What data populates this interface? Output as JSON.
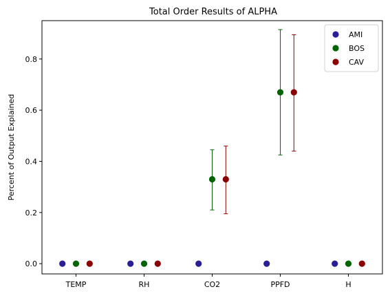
{
  "chart_data": {
    "type": "scatter",
    "title": "Total Order Results of ALPHA",
    "xlabel": "",
    "ylabel": "Percent of Output Explained",
    "categories": [
      "TEMP",
      "RH",
      "CO2",
      "PPFD",
      "H"
    ],
    "ylim": [
      -0.04,
      0.95
    ],
    "yticks": [
      0.0,
      0.2,
      0.4,
      0.6,
      0.8
    ],
    "ytick_labels": [
      "0.0",
      "0.2",
      "0.4",
      "0.6",
      "0.8"
    ],
    "grid": false,
    "legend_position": "top-right",
    "series": [
      {
        "name": "AMI",
        "color": "#2a1e96",
        "offset": -0.2,
        "values": [
          0.0,
          0.0,
          0.0,
          0.0,
          0.0
        ],
        "err_low": [
          null,
          null,
          null,
          null,
          null
        ],
        "err_high": [
          null,
          null,
          null,
          null,
          null
        ]
      },
      {
        "name": "BOS",
        "color": "#006400",
        "offset": 0.0,
        "values": [
          0.0,
          0.0,
          0.33,
          0.67,
          0.0
        ],
        "err_low": [
          null,
          null,
          0.21,
          0.425,
          null
        ],
        "err_high": [
          null,
          null,
          0.445,
          0.915,
          null
        ]
      },
      {
        "name": "CAV",
        "color": "#8b0000",
        "offset": 0.2,
        "values": [
          0.0,
          0.0,
          0.33,
          0.67,
          0.0
        ],
        "err_low": [
          null,
          null,
          0.195,
          0.44,
          null
        ],
        "err_high": [
          null,
          null,
          0.46,
          0.895,
          null
        ]
      }
    ]
  }
}
